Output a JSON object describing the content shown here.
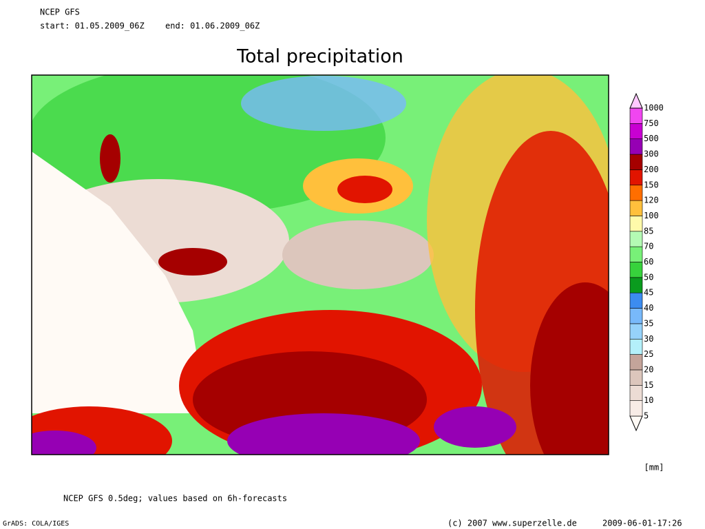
{
  "header": {
    "model": "NCEP GFS",
    "start": "start: 01.05.2009_06Z",
    "end": "end: 01.06.2009_06Z"
  },
  "title": "Total precipitation",
  "legend": {
    "levels": [
      5,
      10,
      15,
      20,
      25,
      30,
      35,
      40,
      45,
      50,
      60,
      70,
      85,
      100,
      120,
      150,
      200,
      300,
      500,
      750,
      1000
    ],
    "colors": [
      "#fffaf5",
      "#f8ece6",
      "#ecdcd4",
      "#dcc6bc",
      "#c4a49a",
      "#b4f0fa",
      "#96d2fa",
      "#78b9fa",
      "#3c8cf0",
      "#0a9b1e",
      "#37d23c",
      "#78f078",
      "#b4fab4",
      "#fffaaa",
      "#ffc03c",
      "#ff6e00",
      "#e11400",
      "#a50000",
      "#9600b4",
      "#c800d2",
      "#f046f0",
      "#ffc8ff"
    ],
    "unit": "[mm]"
  },
  "footer": {
    "note": "NCEP GFS 0.5deg; values based on 6h-forecasts",
    "software": "GrADS: COLA/IGES",
    "copyright": "(c) 2007 www.superzelle.de",
    "timestamp": "2009-06-01-17:26"
  }
}
